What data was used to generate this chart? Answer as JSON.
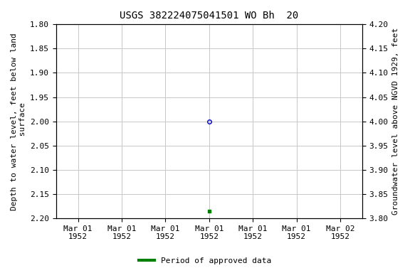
{
  "title": "USGS 382224075041501 WO Bh  20",
  "ylabel_left": "Depth to water level, feet below land\n surface",
  "ylabel_right": "Groundwater level above NGVD 1929, feet",
  "ylim_left": [
    1.8,
    2.2
  ],
  "ylim_right": [
    3.8,
    4.2
  ],
  "yticks_left": [
    1.8,
    1.85,
    1.9,
    1.95,
    2.0,
    2.05,
    2.1,
    2.15,
    2.2
  ],
  "yticks_right": [
    3.8,
    3.85,
    3.9,
    3.95,
    4.0,
    4.05,
    4.1,
    4.15,
    4.2
  ],
  "point_blue_value": 2.0,
  "point_green_value": 2.185,
  "point_blue_color": "#0000CC",
  "point_green_color": "#008000",
  "background_color": "#ffffff",
  "grid_color": "#c8c8c8",
  "title_fontsize": 10,
  "axis_label_fontsize": 8,
  "tick_fontsize": 8,
  "legend_label": "Period of approved data",
  "legend_color": "#008000",
  "num_ticks": 7,
  "point_tick_index": 3,
  "tick_labels": [
    "Mar 01\n1952",
    "Mar 01\n1952",
    "Mar 01\n1952",
    "Mar 01\n1952",
    "Mar 01\n1952",
    "Mar 01\n1952",
    "Mar 02\n1952"
  ]
}
